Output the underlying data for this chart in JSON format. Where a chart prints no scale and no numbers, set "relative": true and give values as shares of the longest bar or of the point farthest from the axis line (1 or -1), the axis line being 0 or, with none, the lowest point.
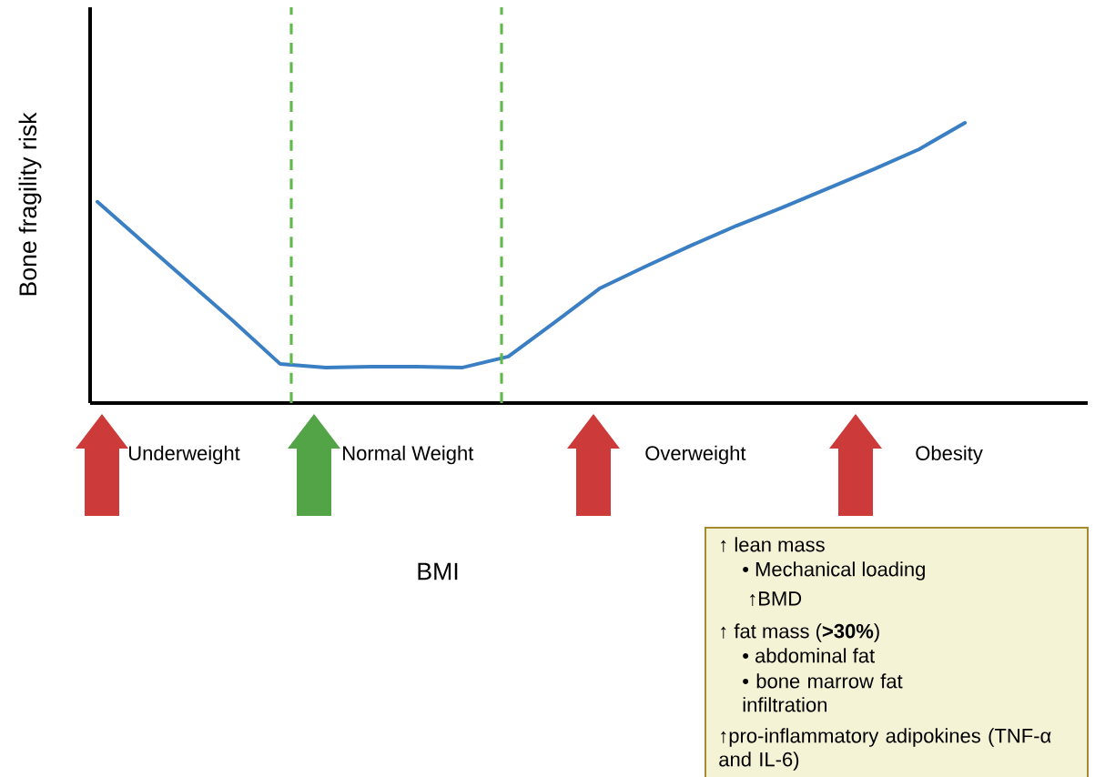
{
  "chart_data": {
    "type": "line",
    "relative": true,
    "ylabel": "Bone fragility risk",
    "categories": [
      null,
      null,
      null,
      null,
      null,
      null,
      null,
      null,
      null,
      null,
      null,
      null,
      null,
      null,
      null,
      null,
      null,
      null,
      null,
      null
    ],
    "series": [
      {
        "color": "#3a7fc4",
        "values": [
          0.718,
          0.575,
          0.432,
          0.289,
          0.14,
          0.127,
          0.13,
          0.13,
          0.127,
          0.166,
          0.286,
          0.409,
          0.487,
          0.562,
          0.633,
          0.698,
          0.766,
          0.834,
          0.906,
          1
        ]
      }
    ],
    "annotations": [
      "Underweight",
      "Normal Weight",
      "Overweight",
      "Obesity",
      "↑  lean mass",
      "• Mechanical loading",
      "↑BMD",
      "↑  fat mass (**>30%**)",
      "• abdominal fat",
      "• bone marrow fat infiltration",
      "↑pro-inflammatory adipokines (TNF-α and IL-6)",
      "BMI"
    ],
    "marker": "none",
    "line_style": "solid"
  }
}
